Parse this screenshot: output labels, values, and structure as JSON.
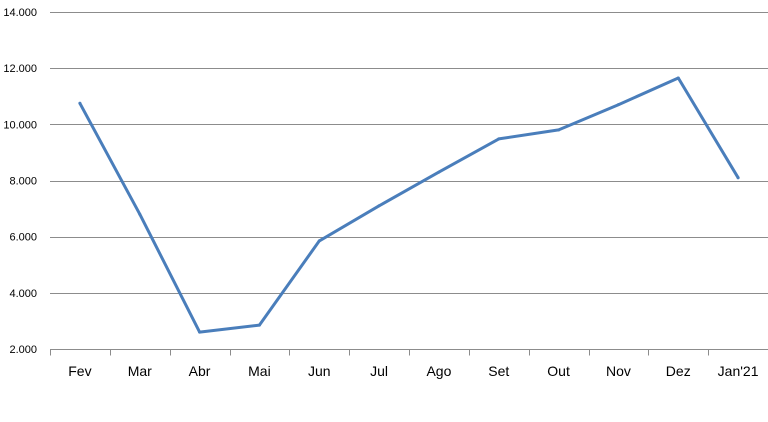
{
  "chart_data": {
    "type": "line",
    "title": "",
    "xlabel": "",
    "ylabel": "",
    "categories": [
      "Fev",
      "Mar",
      "Abr",
      "Mai",
      "Jun",
      "Jul",
      "Ago",
      "Set",
      "Out",
      "Nov",
      "Dez",
      "Jan'21"
    ],
    "series": [
      {
        "values": [
          10750,
          6800,
          2600,
          2850,
          5850,
          7100,
          8300,
          9480,
          9800,
          10700,
          11650,
          8100
        ],
        "color": "#4a7ebb"
      }
    ],
    "ylim": [
      2000,
      14000
    ],
    "yticks": [
      2000,
      4000,
      6000,
      8000,
      10000,
      12000,
      14000
    ],
    "ytick_labels": [
      "2.000",
      "4.000",
      "6.000",
      "8.000",
      "10.000",
      "12.000",
      "14.000"
    ],
    "grid": true,
    "legend": "none"
  }
}
